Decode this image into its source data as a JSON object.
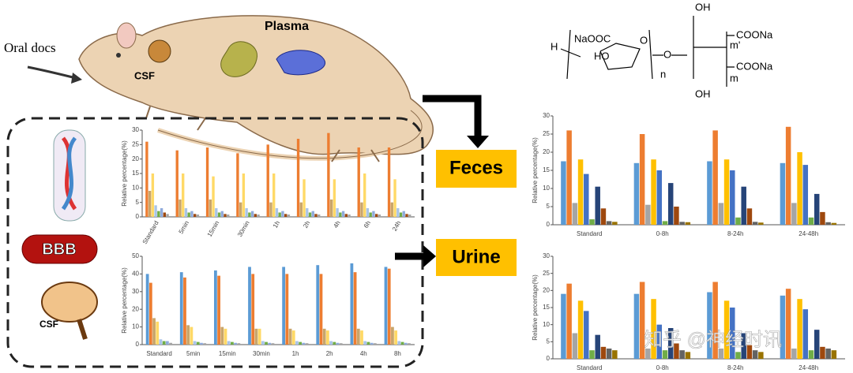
{
  "diagram": {
    "oral": "Oral docs",
    "plasma": "Plasma",
    "csf_top": "CSF",
    "bbb": "BBB",
    "csf_bottom": "CSF",
    "feces": "Feces",
    "urine": "Urine",
    "watermark": "知乎 @神经时讯",
    "structure": [
      "H",
      "NaOOC",
      "HO",
      "O",
      "n",
      "OH",
      "m'",
      "COONa",
      "m",
      "COONa",
      "OH",
      "O"
    ]
  },
  "chart_data": [
    {
      "type": "bar",
      "ylabel": "Relative percentage(%)",
      "categories": [
        "Standard",
        "5min",
        "15min",
        "30min",
        "1h",
        "2h",
        "4h",
        "6h",
        "24h"
      ],
      "ylim": [
        0,
        30
      ],
      "yticks": [
        0,
        5,
        10,
        15,
        20,
        25,
        30
      ],
      "series": [
        {
          "color": "#ed7d31",
          "values": [
            26,
            23,
            24,
            22,
            25,
            27,
            29,
            24,
            24
          ]
        },
        {
          "color": "#c9a56a",
          "values": [
            9,
            6,
            6,
            5,
            5,
            5,
            6,
            5,
            5
          ]
        },
        {
          "color": "#ffd966",
          "values": [
            15,
            15,
            14,
            15,
            15,
            13,
            13,
            15,
            13
          ]
        },
        {
          "color": "#a9c4e8",
          "values": [
            4,
            3,
            3,
            3,
            3,
            3,
            3,
            3,
            3
          ]
        },
        {
          "color": "#70ad47",
          "values": [
            2,
            1.5,
            1.5,
            1.5,
            1.5,
            1.5,
            1.5,
            1.5,
            1.5
          ]
        },
        {
          "color": "#8faadc",
          "values": [
            3,
            2,
            2,
            2,
            2,
            2,
            2,
            2,
            2
          ]
        },
        {
          "color": "#9e480e",
          "values": [
            1.5,
            1,
            1,
            1,
            1,
            1,
            1,
            1,
            1
          ]
        },
        {
          "color": "#a5a5a5",
          "values": [
            1,
            0.8,
            0.8,
            0.8,
            0.8,
            0.8,
            0.8,
            0.8,
            0.8
          ]
        }
      ]
    },
    {
      "type": "bar",
      "ylabel": "Relative percentage(%)",
      "categories": [
        "Standard",
        "5min",
        "15min",
        "30min",
        "1h",
        "2h",
        "4h",
        "8h"
      ],
      "ylim": [
        0,
        50
      ],
      "yticks": [
        0,
        10,
        20,
        30,
        40,
        50
      ],
      "series": [
        {
          "color": "#5b9bd5",
          "values": [
            40,
            41,
            42,
            44,
            44,
            45,
            46,
            44
          ]
        },
        {
          "color": "#ed7d31",
          "values": [
            35,
            38,
            39,
            40,
            40,
            40,
            41,
            43
          ]
        },
        {
          "color": "#c9a56a",
          "values": [
            15,
            11,
            10,
            9,
            9,
            9,
            9,
            10
          ]
        },
        {
          "color": "#ffd966",
          "values": [
            13,
            10,
            9,
            9,
            8,
            8,
            8,
            8
          ]
        },
        {
          "color": "#a9c4e8",
          "values": [
            3,
            2,
            2,
            2,
            2,
            2,
            2,
            2
          ]
        },
        {
          "color": "#70ad47",
          "values": [
            2,
            1.5,
            1.5,
            1.5,
            1.5,
            1.5,
            1.5,
            1.5
          ]
        },
        {
          "color": "#8faadc",
          "values": [
            2,
            1,
            1,
            1,
            1,
            1,
            1,
            1
          ]
        },
        {
          "color": "#a5a5a5",
          "values": [
            1,
            0.8,
            0.8,
            0.8,
            0.8,
            0.8,
            0.8,
            0.8
          ]
        }
      ]
    },
    {
      "type": "bar",
      "ylabel": "Relative percentage(%)",
      "categories": [
        "Standard",
        "0-8h",
        "8-24h",
        "24-48h"
      ],
      "ylim": [
        0,
        30
      ],
      "yticks": [
        0,
        5,
        10,
        15,
        20,
        25,
        30
      ],
      "series": [
        {
          "color": "#5b9bd5",
          "values": [
            17.5,
            17,
            17.5,
            17
          ]
        },
        {
          "color": "#ed7d31",
          "values": [
            26,
            25,
            26,
            27
          ]
        },
        {
          "color": "#a5a5a5",
          "values": [
            6,
            5.5,
            6,
            6
          ]
        },
        {
          "color": "#ffc000",
          "values": [
            18,
            18,
            18,
            20
          ]
        },
        {
          "color": "#4472c4",
          "values": [
            14,
            15,
            15,
            16.5
          ]
        },
        {
          "color": "#70ad47",
          "values": [
            1.5,
            1,
            2,
            2
          ]
        },
        {
          "color": "#264478",
          "values": [
            10.5,
            11.5,
            10.5,
            8.5
          ]
        },
        {
          "color": "#9e480e",
          "values": [
            4.5,
            5,
            4.5,
            3.5
          ]
        },
        {
          "color": "#636363",
          "values": [
            1,
            0.8,
            0.8,
            0.7
          ]
        },
        {
          "color": "#997300",
          "values": [
            0.8,
            0.7,
            0.6,
            0.5
          ]
        }
      ]
    },
    {
      "type": "bar",
      "ylabel": "Relative percentage(%)",
      "categories": [
        "Standard",
        "0-8h",
        "8-24h",
        "24-48h"
      ],
      "ylim": [
        0,
        30
      ],
      "yticks": [
        0,
        5,
        10,
        15,
        20,
        25,
        30
      ],
      "series": [
        {
          "color": "#5b9bd5",
          "values": [
            19,
            19,
            19.5,
            18.5
          ]
        },
        {
          "color": "#ed7d31",
          "values": [
            22,
            22.5,
            22.5,
            20.5
          ]
        },
        {
          "color": "#a5a5a5",
          "values": [
            7.5,
            3,
            3,
            3
          ]
        },
        {
          "color": "#ffc000",
          "values": [
            17,
            17.5,
            17,
            17.5
          ]
        },
        {
          "color": "#4472c4",
          "values": [
            14,
            10,
            15,
            14.5
          ]
        },
        {
          "color": "#70ad47",
          "values": [
            2.5,
            2.5,
            2,
            2.5
          ]
        },
        {
          "color": "#264478",
          "values": [
            7,
            9,
            7.5,
            8.5
          ]
        },
        {
          "color": "#9e480e",
          "values": [
            3.5,
            4.5,
            4,
            3.5
          ]
        },
        {
          "color": "#636363",
          "values": [
            3,
            2.5,
            2.5,
            3
          ]
        },
        {
          "color": "#997300",
          "values": [
            2.5,
            2,
            2,
            2.5
          ]
        }
      ]
    }
  ]
}
